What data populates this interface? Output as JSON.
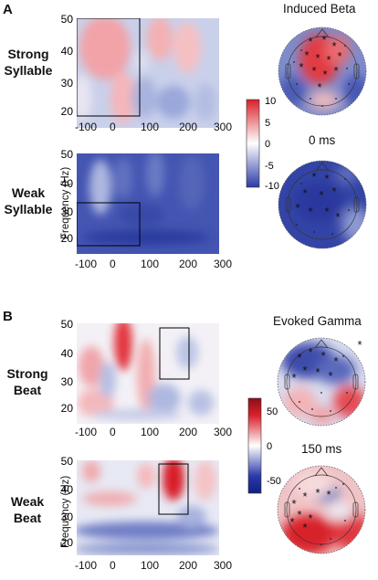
{
  "panels": [
    {
      "letter": "A",
      "topomap_title": "Induced Beta",
      "topomap_time": "0 ms",
      "colorbar_ticks": [
        "10",
        "5",
        "0",
        "-5",
        "-10"
      ],
      "rows": [
        {
          "label_line1": "Strong",
          "label_line2": "Syllable"
        },
        {
          "label_line1": "Weak",
          "label_line2": "Syllable"
        }
      ]
    },
    {
      "letter": "B",
      "topomap_title": "Evoked Gamma",
      "topomap_time": "150 ms",
      "colorbar_ticks": [
        "50",
        "0",
        "-50"
      ],
      "rows": [
        {
          "label_line1": "Strong",
          "label_line2": "Beat"
        },
        {
          "label_line1": "Weak",
          "label_line2": "Beat"
        }
      ]
    }
  ],
  "axes": {
    "x_ticks": [
      "-100",
      "0",
      "100",
      "200",
      "300"
    ],
    "y_ticks": [
      "50",
      "40",
      "30",
      "20"
    ],
    "ylabel": "Frequency (Hz)"
  },
  "colors": {
    "positive": "#d8202a",
    "zero": "#ffffff",
    "negative": "#2a3aa8"
  }
}
